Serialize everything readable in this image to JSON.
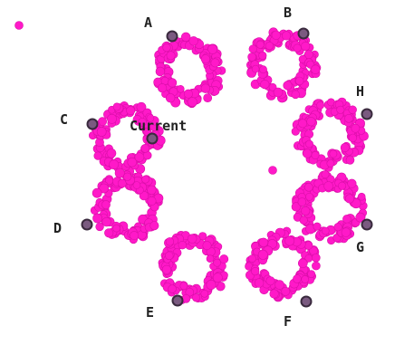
{
  "colors": {
    "dot_fill": "#ff19c8",
    "marker_fill": "#7a5a80",
    "marker_stroke": "#3a2a3e",
    "text": "#222222",
    "background": "#ffffff"
  },
  "labels": {
    "A": "A",
    "B": "B",
    "C": "C",
    "D": "D",
    "E": "E",
    "F": "F",
    "G": "G",
    "H": "H",
    "current": "Current"
  }
}
